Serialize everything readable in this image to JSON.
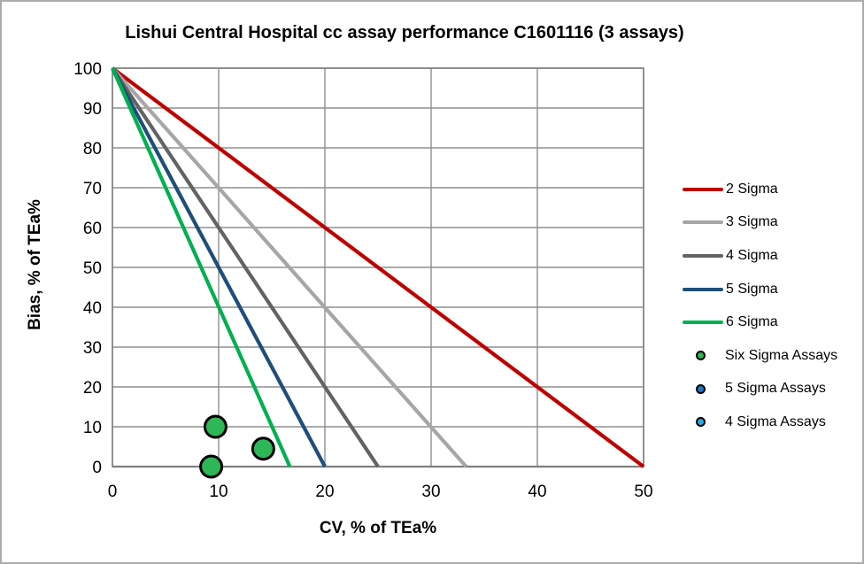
{
  "chart_data": {
    "type": "line+scatter",
    "title": "Lishui Central Hospital cc assay performance C1601116 (3 assays)",
    "xlabel": "CV, % of TEa%",
    "ylabel": "Bias, % of TEa%",
    "xlim": [
      0,
      50
    ],
    "ylim": [
      0,
      100
    ],
    "xticks": [
      0,
      10,
      20,
      30,
      40,
      50
    ],
    "yticks": [
      0,
      10,
      20,
      30,
      40,
      50,
      60,
      70,
      80,
      90,
      100
    ],
    "grid": true,
    "legend_position": "right",
    "colors": {
      "gridline": "#8f8f8f",
      "plot_border": "#808080",
      "axis_line": "#808080",
      "text": "#000000"
    },
    "sigma_lines": [
      {
        "name": "2 Sigma",
        "color": "#c00000",
        "from": [
          0,
          100
        ],
        "to": [
          50,
          0
        ]
      },
      {
        "name": "3 Sigma",
        "color": "#a6a6a6",
        "from": [
          0,
          100
        ],
        "to": [
          33.3,
          0
        ]
      },
      {
        "name": "4 Sigma",
        "color": "#636363",
        "from": [
          0,
          100
        ],
        "to": [
          25,
          0
        ]
      },
      {
        "name": "5 Sigma",
        "color": "#1f4e79",
        "from": [
          0,
          100
        ],
        "to": [
          20,
          0
        ]
      },
      {
        "name": "6 Sigma",
        "color": "#00b050",
        "from": [
          0,
          100
        ],
        "to": [
          16.7,
          0
        ]
      }
    ],
    "scatter_series": [
      {
        "name": "Six Sigma Assays",
        "fill": "#2db757",
        "outline": "#000000",
        "points": [
          [
            9.7,
            10
          ],
          [
            14.2,
            4.5
          ],
          [
            9.3,
            0
          ]
        ]
      },
      {
        "name": "5 Sigma Assays",
        "fill": "#2077c4",
        "outline": "#000000",
        "points": []
      },
      {
        "name": "4 Sigma Assays",
        "fill": "#29abe2",
        "outline": "#000000",
        "points": []
      }
    ]
  }
}
